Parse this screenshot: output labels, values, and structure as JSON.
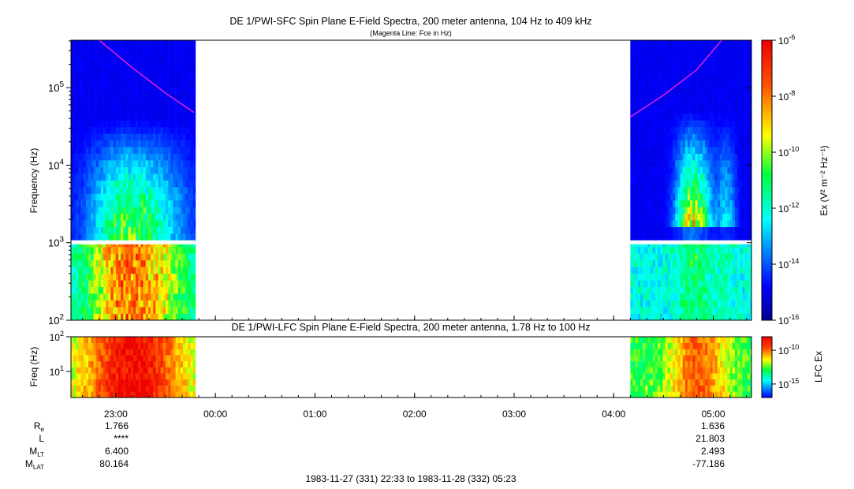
{
  "chart_data": [
    {
      "type": "heatmap",
      "title": "DE 1/PWI-SFC  Spin Plane E-Field Spectra, 200 meter antenna, 104 Hz to 409 kHz",
      "subtitle": "(Magenta Line: Fce in Hz)",
      "ylabel": "Frequency (Hz)",
      "yscale": "log",
      "ylim": [
        100,
        409000
      ],
      "yticks": [
        {
          "v": 100,
          "e": "2"
        },
        {
          "v": 1000,
          "e": "3"
        },
        {
          "v": 10000,
          "e": "4"
        },
        {
          "v": 100000,
          "e": "5"
        }
      ],
      "colorbar": {
        "label": "Ex",
        "units": "(V² m⁻² Hz⁻¹)",
        "scale": "log",
        "range": [
          1e-16,
          1e-06
        ],
        "ticks": [
          {
            "v": 1e-06,
            "e": "-6"
          },
          {
            "v": 1e-08,
            "e": "-8"
          },
          {
            "v": 1e-10,
            "e": "-10"
          },
          {
            "v": 1e-12,
            "e": "-12"
          },
          {
            "v": 1e-14,
            "e": "-14"
          },
          {
            "v": 1e-16,
            "e": "-16"
          }
        ]
      },
      "data_gap": {
        "start": "23:48",
        "end": "04:10"
      },
      "fce_line": {
        "label": "Fce in Hz",
        "color": "#e020e0",
        "segments": [
          [
            {
              "t": "22:50",
              "f": 409000
            },
            {
              "t": "23:10",
              "f": 180000
            },
            {
              "t": "23:30",
              "f": 85000
            },
            {
              "t": "23:47",
              "f": 48000
            }
          ],
          [
            {
              "t": "04:10",
              "f": 42000
            },
            {
              "t": "04:30",
              "f": 80000
            },
            {
              "t": "04:50",
              "f": 170000
            },
            {
              "t": "05:05",
              "f": 409000
            }
          ]
        ]
      }
    },
    {
      "type": "heatmap",
      "title": "DE 1/PWI-LFC  Spin Plane E-Field Spectra, 200 meter antenna, 1.78 Hz to 100 Hz",
      "ylabel": "Freq (Hz)",
      "yscale": "log",
      "ylim": [
        1.78,
        100
      ],
      "yticks": [
        {
          "v": 10,
          "e": "1"
        },
        {
          "v": 100,
          "e": "2"
        }
      ],
      "colorbar": {
        "label": "LFC Ex",
        "scale": "log",
        "range": [
          1e-17,
          1e-08
        ],
        "ticks": [
          {
            "v": 1e-10,
            "e": "-10"
          },
          {
            "v": 1e-15,
            "e": "-15"
          }
        ]
      },
      "data_gap": {
        "start": "23:48",
        "end": "04:10"
      }
    }
  ],
  "time_axis": {
    "start": "22:33",
    "end": "05:23",
    "ticks": [
      "23:00",
      "00:00",
      "01:00",
      "02:00",
      "03:00",
      "04:00",
      "05:00"
    ]
  },
  "ephemeris": {
    "rows": [
      {
        "label": "R",
        "sub": "e",
        "left": "1.766",
        "right": "1.636"
      },
      {
        "label": "L",
        "sub": "",
        "left": "****",
        "right": "21.803"
      },
      {
        "label": "M",
        "sub": "LT",
        "left": "6.400",
        "right": "2.493"
      },
      {
        "label": "M",
        "sub": "LAT",
        "left": "80.164",
        "right": "-77.186"
      }
    ]
  },
  "footer": "1983-11-27 (331) 22:33 to 1983-11-28 (332) 05:23"
}
